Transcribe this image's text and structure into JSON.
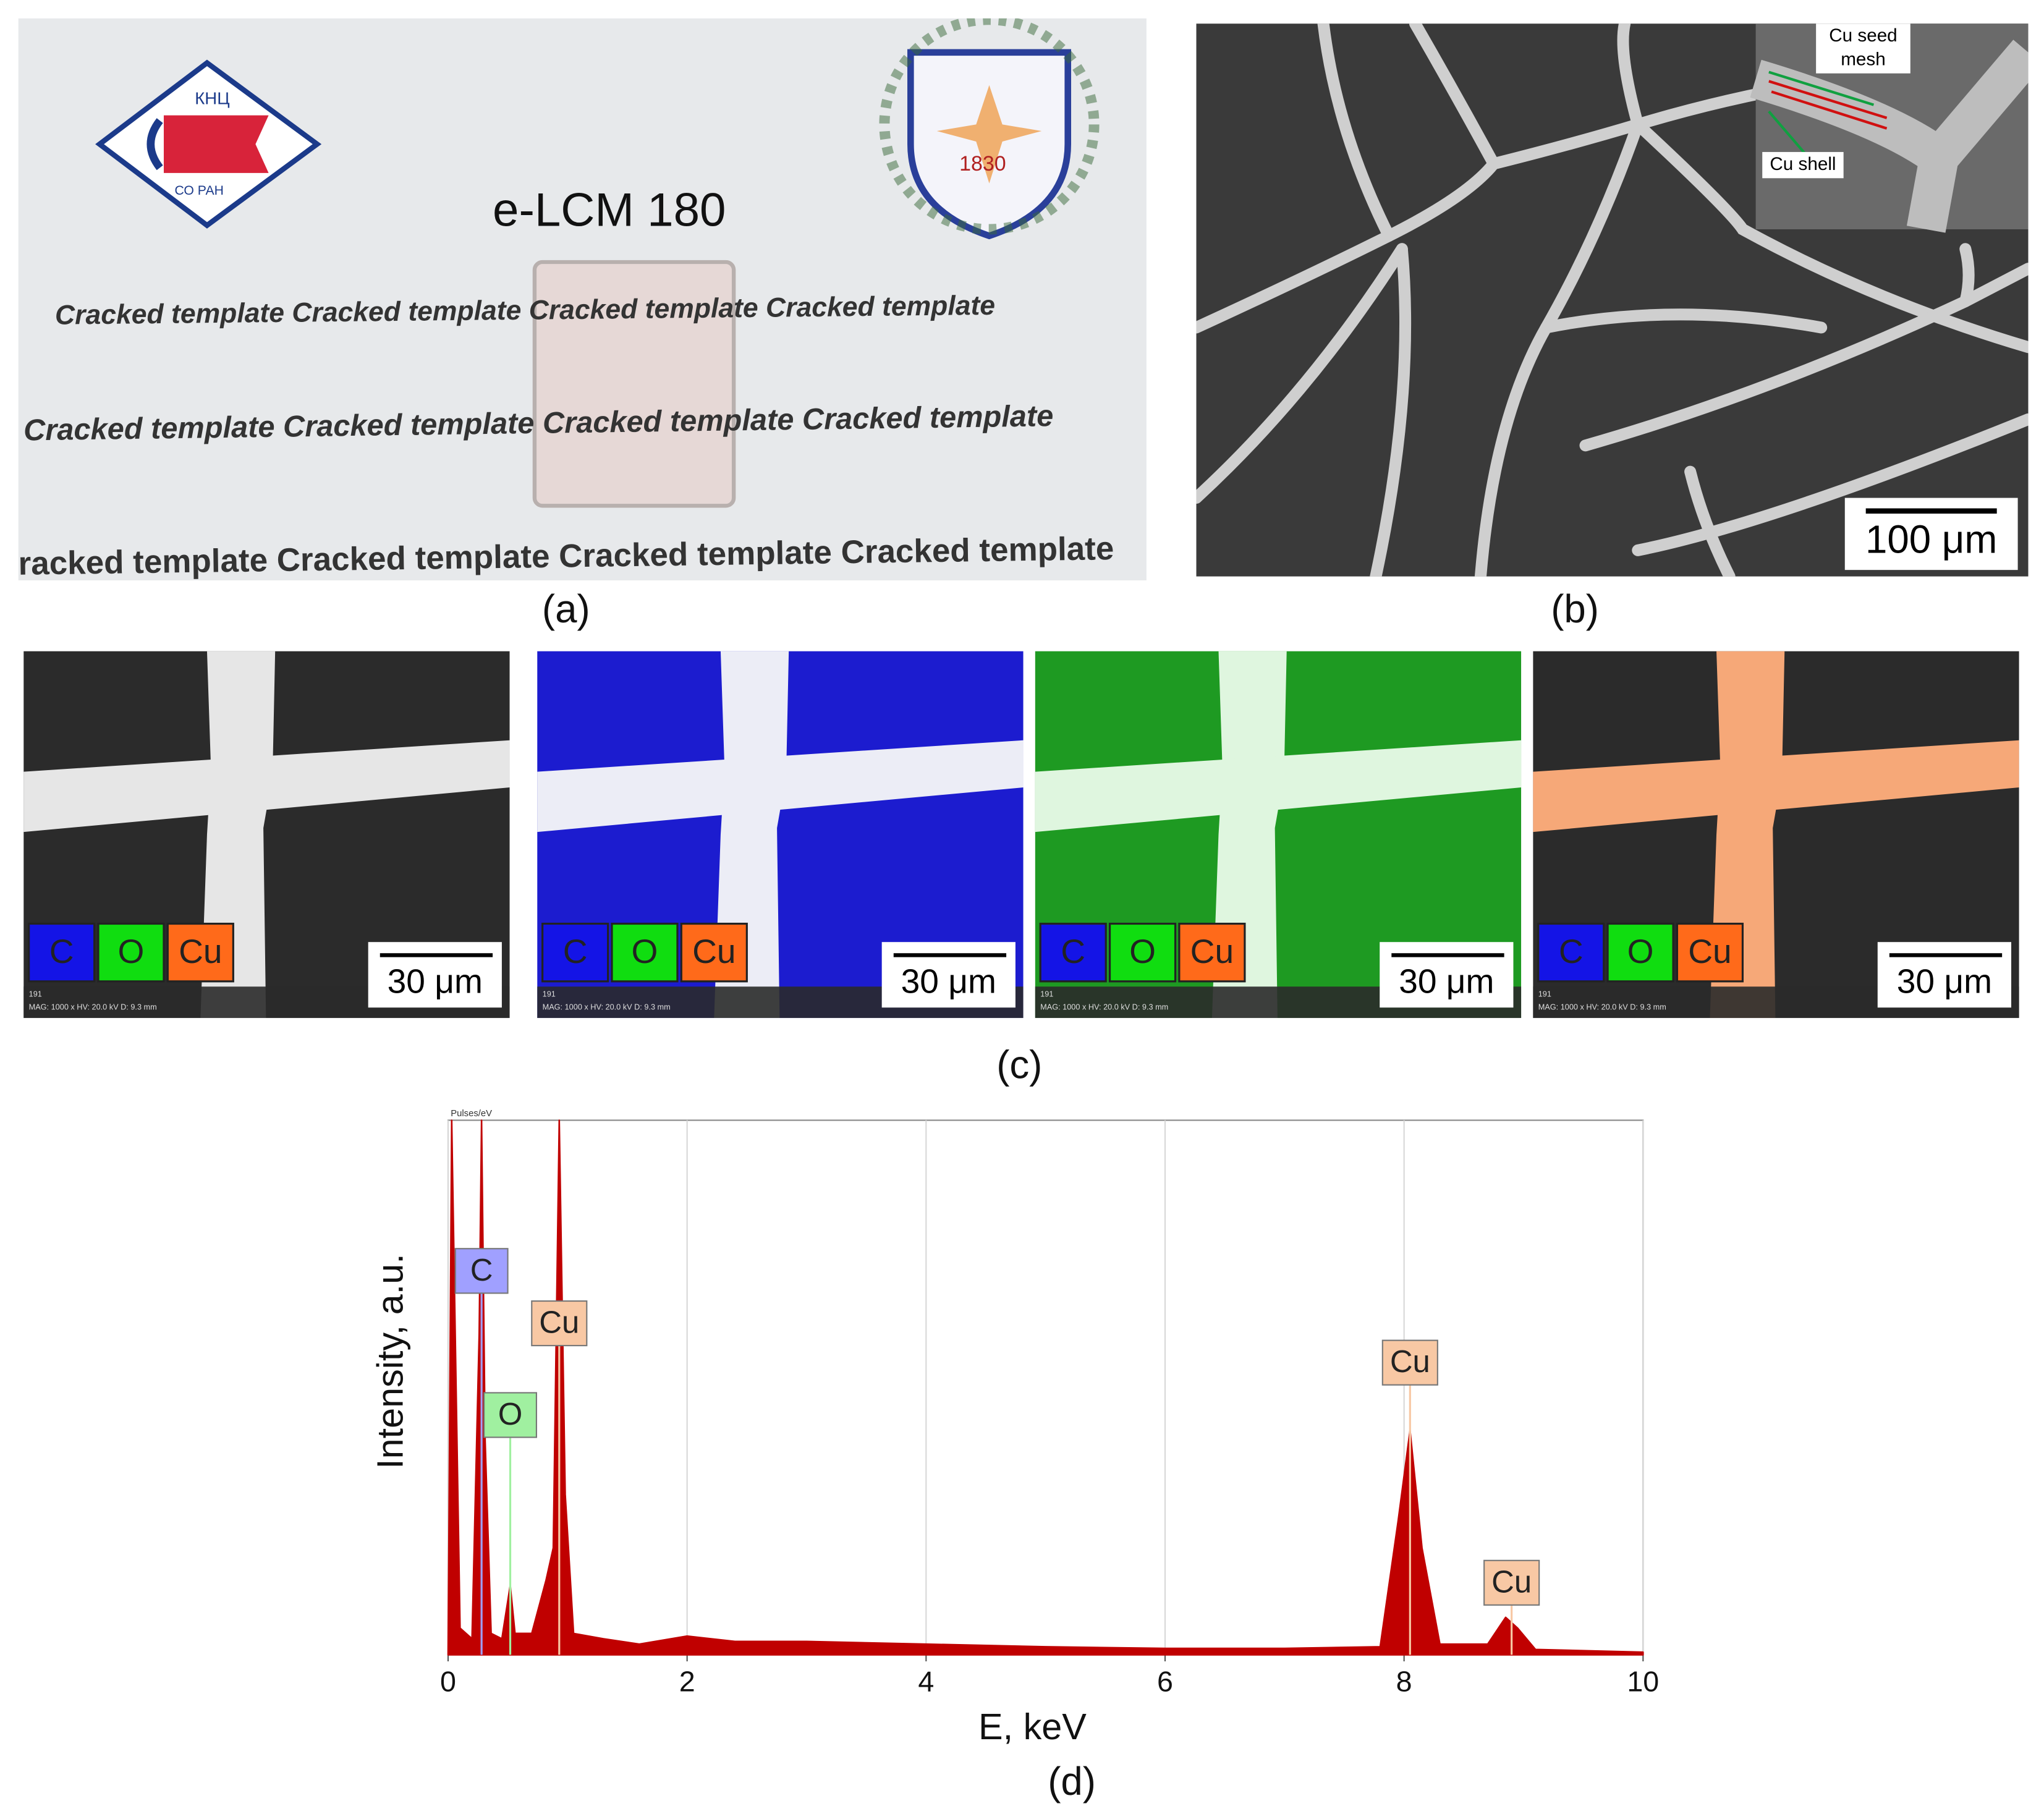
{
  "panels": {
    "a": {
      "label": "(a)",
      "sample_label": "e-LCM 180",
      "text_lines": [
        "Cracked template Cracked template Cracked template Cracked template",
        "Cracked template  Cracked template Cracked template Cracked template",
        "racked template Cracked template Cracked template Cracked template"
      ],
      "logo_left": [
        "КНЦ",
        "СО РАН"
      ],
      "logo_right": "1830"
    },
    "b": {
      "label": "(b)",
      "inset_labels": [
        [
          "Cu seed",
          "mesh"
        ],
        "Cu shell"
      ],
      "scale_bar": "100 μm"
    },
    "c": {
      "label": "(c)",
      "legend": [
        {
          "label": "C",
          "color": "#1414e6"
        },
        {
          "label": "O",
          "color": "#10dd10"
        },
        {
          "label": "Cu",
          "color": "#ff6a1a"
        }
      ],
      "maps": [
        {
          "scale_bar": "30 μm",
          "info_id": "191",
          "info": "MAG: 1000 x   HV: 20.0 kV   D: 9.3 mm"
        },
        {
          "scale_bar": "30 μm",
          "info_id": "191",
          "info": "MAG: 1000 x   HV: 20.0 kV   D: 9.3 mm"
        },
        {
          "scale_bar": "30 μm",
          "info_id": "191",
          "info": "MAG: 1000 x   HV: 20.0 kV   D: 9.3 mm"
        },
        {
          "scale_bar": "30 μm",
          "info_id": "191",
          "info": "MAG: 1000 x   HV: 20.0 kV   D: 9.3 mm"
        }
      ]
    },
    "d": {
      "label": "(d)"
    }
  },
  "chart_data": {
    "type": "area",
    "x_label": "E, keV",
    "y_label": "Intensity, a.u.",
    "y_unit_label": "Pulses/eV",
    "color": "#c00000",
    "x": [
      0,
      0.03,
      0.1,
      0.2,
      0.26,
      0.28,
      0.31,
      0.36,
      0.45,
      0.52,
      0.56,
      0.7,
      0.82,
      0.88,
      0.93,
      0.98,
      1.05,
      1.3,
      1.6,
      2.0,
      2.4,
      3,
      4,
      5,
      6,
      7,
      7.8,
      7.95,
      8.05,
      8.15,
      8.3,
      8.7,
      8.85,
      8.95,
      9.1,
      10
    ],
    "values": [
      0,
      100,
      5,
      3,
      60,
      100,
      40,
      4,
      3,
      13,
      4,
      4,
      14,
      20,
      100,
      30,
      4,
      3,
      2,
      3.5,
      2.5,
      2.5,
      2,
      1.5,
      1.2,
      1.2,
      1.5,
      25,
      42,
      20,
      2,
      2,
      7,
      5,
      1,
      0.5
    ],
    "xlim": [
      0,
      10
    ],
    "xticks": [
      0,
      2,
      4,
      6,
      8,
      10
    ],
    "ylim": [
      0,
      100
    ],
    "grid": true,
    "peak_labels": [
      {
        "label": "C",
        "x": 0.28,
        "color": "#a0a0ff"
      },
      {
        "label": "O",
        "x": 0.52,
        "color": "#a0f0a0"
      },
      {
        "label": "Cu",
        "x": 0.93,
        "color": "#f8c8a4"
      },
      {
        "label": "Cu",
        "x": 8.05,
        "color": "#f8c8a4"
      },
      {
        "label": "Cu",
        "x": 8.9,
        "color": "#f8c8a4"
      }
    ]
  }
}
